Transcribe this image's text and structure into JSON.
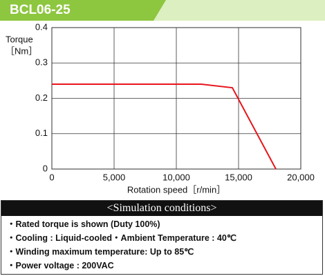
{
  "chart_data": {
    "type": "line",
    "title": "BCL06-25",
    "y_label": [
      "Torque",
      "［Nm］"
    ],
    "x_label": "Rotation speed［r/min］",
    "x": [
      0,
      12000,
      14500,
      18000
    ],
    "series": [
      {
        "name": "Rated torque",
        "color": "#e8141b",
        "values": [
          0.24,
          0.24,
          0.23,
          0
        ]
      }
    ],
    "xlim": [
      0,
      20000
    ],
    "xticks": [
      0,
      {
        "value": 5000,
        "label": "5,000"
      },
      {
        "value": 10000,
        "label": "10,000"
      },
      {
        "value": 15000,
        "label": "15,000"
      },
      {
        "value": 20000,
        "label": "20,000"
      }
    ],
    "ylim": [
      0,
      0.4
    ],
    "yticks": [
      0,
      0.1,
      0.2,
      0.3,
      0.4
    ],
    "grid": true
  },
  "conditions": {
    "title": "<Simulation conditions>",
    "items": [
      "・Rated torque is shown (Duty 100%)",
      "・Cooling : Liquid-cooled・Ambient Temperature : 40℃",
      "・Winding maximum temperature: Up to 85℃",
      "・Power voltage : 200VAC"
    ]
  }
}
